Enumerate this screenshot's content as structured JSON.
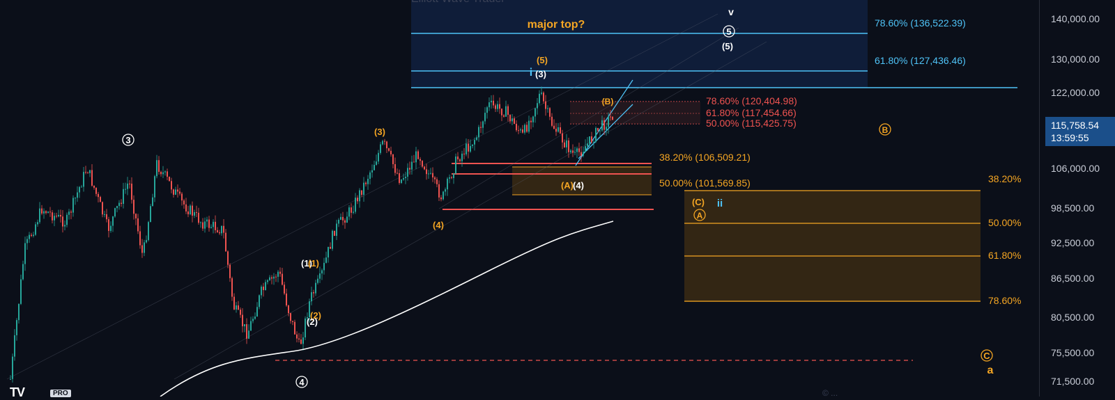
{
  "chart_data": {
    "type": "candlestick",
    "ylim": [
      71500,
      145000
    ],
    "y_ticks": [
      "140,000.00",
      "130,000.00",
      "122,000.00",
      "106,000.00",
      "98,500.00",
      "92,500.00",
      "86,500.00",
      "80,500.00",
      "75,500.00",
      "71,500.00"
    ],
    "last_price": "115,758.54",
    "countdown": "13:59:55",
    "fib_levels_blue": [
      {
        "label": "78.60% (136,522.39)",
        "value": 136522.39
      },
      {
        "label": "61.80% (127,436.46)",
        "value": 127436.46
      }
    ],
    "fib_levels_red": [
      {
        "label": "78.60% (120,404.98)",
        "value": 120404.98
      },
      {
        "label": "61.80% (117,454.66)",
        "value": 117454.66
      },
      {
        "label": "50.00% (115,425.75)",
        "value": 115425.75
      }
    ],
    "fib_levels_orange": [
      {
        "label": "38.20% (106,509.21)",
        "value": 106509.21
      },
      {
        "label": "50.00% (101,569.85)",
        "value": 101569.85
      }
    ],
    "right_box_levels": [
      "38.20%",
      "50.00%",
      "61.80%",
      "78.60%"
    ],
    "annotations": [
      "major top?",
      "(5)",
      "(3)",
      "i",
      "(B)",
      "B",
      "(3)",
      "(4)",
      "(A)",
      "(4)",
      "(C)",
      "A",
      "ii",
      "3",
      "(1)",
      "(1)",
      "(2)",
      "(2)",
      "4",
      "5",
      "(5)",
      "v",
      "C",
      "a"
    ],
    "series": [
      {
        "name": "",
        "type": "moving-average",
        "color": "#ffffff"
      }
    ]
  },
  "colors": {
    "background": "#0b0f19",
    "up_candle": "#26a69a",
    "down_candle": "#ef5350",
    "blue_fib": "#4fc3f7",
    "red_fib": "#ef5350",
    "orange_fib": "#f5a623",
    "ma": "#ffffff"
  },
  "branding": {
    "logo": "TV",
    "badge": "PRO",
    "watermark": "Elliott Wave Trader",
    "copyright": "© ..."
  }
}
